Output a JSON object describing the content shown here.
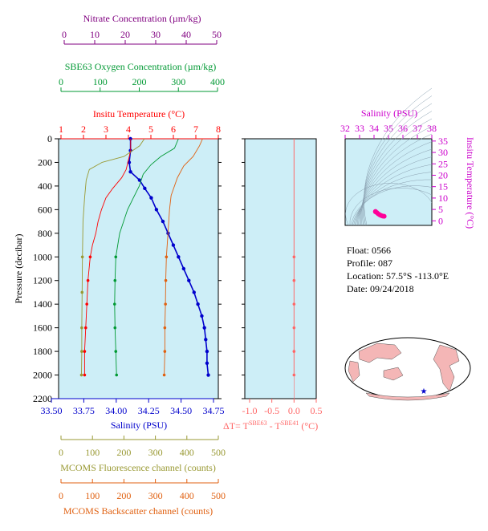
{
  "info": {
    "float": "Float:  0566",
    "profile": "Profile:  087",
    "location": "Location:  57.5°S  -113.0°E",
    "date": "Date:  09/24/2018"
  },
  "colors": {
    "temperature": "#ff0000",
    "salinity": "#0000cc",
    "oxygen": "#009933",
    "nitrate": "#800080",
    "fluorescence": "#999933",
    "backscatter": "#e06010",
    "delta_t": "#ff6666",
    "ts_salinity_axis": "#cc00cc",
    "ts_temp_axis": "#cc00cc",
    "panel_bg": "#cdeef7",
    "land": "#f4b6b6"
  },
  "axes": {
    "nitrate": {
      "label": "Nitrate Concentration (µm/kg)",
      "ticks": [
        "0",
        "10",
        "20",
        "30",
        "40",
        "50"
      ],
      "range": [
        0,
        50
      ]
    },
    "oxygen": {
      "label": "SBE63 Oxygen Concentration (µm/kg)",
      "ticks": [
        "0",
        "100",
        "200",
        "300",
        "400"
      ],
      "range": [
        0,
        400
      ]
    },
    "temperature": {
      "label": "Insitu Temperature (°C)",
      "ticks": [
        "1",
        "2",
        "3",
        "4",
        "5",
        "6",
        "7",
        "8"
      ],
      "range": [
        1,
        8
      ]
    },
    "pressure": {
      "label": "Pressure (decibar)",
      "ticks": [
        "0",
        "200",
        "400",
        "600",
        "800",
        "1000",
        "1200",
        "1400",
        "1600",
        "1800",
        "2000",
        "2200"
      ],
      "range": [
        0,
        2200
      ]
    },
    "salinity": {
      "label": "Salinity (PSU)",
      "ticks": [
        "33.50",
        "33.75",
        "34.00",
        "34.25",
        "34.50",
        "34.75"
      ],
      "range": [
        33.5,
        34.75
      ]
    },
    "delta_t": {
      "label_main": "ΔT= T",
      "label_sup1": "SBE63",
      "label_mid": " - T",
      "label_sup2": "SBE41",
      "label_end": " (°C)",
      "ticks": [
        "-1.0",
        "-0.5",
        "0.0",
        "0.5"
      ],
      "range": [
        -1.0,
        0.5
      ]
    },
    "fluorescence": {
      "label": "MCOMS Fluorescence channel (counts)",
      "ticks": [
        "0",
        "100",
        "200",
        "300",
        "400",
        "500"
      ],
      "range": [
        0,
        500
      ]
    },
    "backscatter": {
      "label": "MCOMS Backscatter channel (counts)",
      "ticks": [
        "0",
        "100",
        "200",
        "300",
        "400",
        "500"
      ],
      "range": [
        0,
        500
      ]
    },
    "ts_salinity": {
      "label": "Salinity (PSU)",
      "ticks": [
        "32",
        "33",
        "34",
        "35",
        "36",
        "37",
        "38"
      ],
      "range": [
        32,
        38
      ]
    },
    "ts_temperature": {
      "label": "Insitu Temperature (°C)",
      "ticks": [
        "0",
        "5",
        "10",
        "15",
        "20",
        "25",
        "30",
        "35"
      ],
      "range": [
        -2,
        36
      ]
    }
  },
  "chart_data": [
    {
      "type": "line",
      "title": "",
      "ylabel": "Pressure (decibar)",
      "ylim": [
        2200,
        0
      ],
      "series": [
        {
          "name": "Salinity (PSU)",
          "axis": "salinity",
          "points": [
            [
              34.11,
              0
            ],
            [
              34.11,
              100
            ],
            [
              34.1,
              200
            ],
            [
              34.11,
              280
            ],
            [
              34.18,
              350
            ],
            [
              34.22,
              420
            ],
            [
              34.27,
              500
            ],
            [
              34.31,
              600
            ],
            [
              34.36,
              700
            ],
            [
              34.4,
              800
            ],
            [
              34.44,
              900
            ],
            [
              34.48,
              1000
            ],
            [
              34.52,
              1100
            ],
            [
              34.56,
              1200
            ],
            [
              34.6,
              1300
            ],
            [
              34.63,
              1400
            ],
            [
              34.66,
              1500
            ],
            [
              34.68,
              1600
            ],
            [
              34.69,
              1700
            ],
            [
              34.7,
              1800
            ],
            [
              34.7,
              1900
            ],
            [
              34.71,
              2000
            ]
          ]
        },
        {
          "name": "Insitu Temperature (°C)",
          "axis": "temperature",
          "points": [
            [
              4.1,
              0
            ],
            [
              4.1,
              100
            ],
            [
              4.0,
              180
            ],
            [
              3.9,
              260
            ],
            [
              3.7,
              330
            ],
            [
              3.3,
              420
            ],
            [
              3.0,
              500
            ],
            [
              2.8,
              600
            ],
            [
              2.65,
              700
            ],
            [
              2.55,
              800
            ],
            [
              2.4,
              900
            ],
            [
              2.3,
              1000
            ],
            [
              2.2,
              1200
            ],
            [
              2.15,
              1400
            ],
            [
              2.1,
              1600
            ],
            [
              2.05,
              1800
            ],
            [
              2.05,
              2000
            ]
          ]
        },
        {
          "name": "SBE63 Oxygen Concentration (µm/kg)",
          "axis": "oxygen",
          "points": [
            [
              300,
              0
            ],
            [
              290,
              80
            ],
            [
              255,
              150
            ],
            [
              230,
              220
            ],
            [
              210,
              300
            ],
            [
              200,
              400
            ],
            [
              185,
              500
            ],
            [
              170,
              600
            ],
            [
              160,
              700
            ],
            [
              150,
              800
            ],
            [
              145,
              900
            ],
            [
              140,
              1000
            ],
            [
              138,
              1200
            ],
            [
              137,
              1400
            ],
            [
              138,
              1600
            ],
            [
              140,
              1800
            ],
            [
              142,
              2000
            ]
          ]
        },
        {
          "name": "MCOMS Fluorescence channel (counts)",
          "axis": "fluorescence",
          "points": [
            [
              265,
              0
            ],
            [
              250,
              60
            ],
            [
              200,
              150
            ],
            [
              130,
              200
            ],
            [
              90,
              260
            ],
            [
              80,
              350
            ],
            [
              75,
              500
            ],
            [
              70,
              700
            ],
            [
              68,
              1000
            ],
            [
              67,
              1300
            ],
            [
              66,
              1600
            ],
            [
              66,
              1800
            ],
            [
              65,
              2000
            ]
          ]
        },
        {
          "name": "MCOMS Backscatter channel (counts)",
          "axis": "backscatter",
          "points": [
            [
              450,
              0
            ],
            [
              440,
              60
            ],
            [
              420,
              150
            ],
            [
              390,
              230
            ],
            [
              370,
              330
            ],
            [
              350,
              480
            ],
            [
              345,
              600
            ],
            [
              340,
              800
            ],
            [
              335,
              1000
            ],
            [
              333,
              1200
            ],
            [
              332,
              1400
            ],
            [
              330,
              1600
            ],
            [
              330,
              1800
            ],
            [
              328,
              2000
            ]
          ]
        },
        {
          "name": "ΔT",
          "axis": "delta_t",
          "points": [
            [
              0.0,
              0
            ],
            [
              0.0,
              200
            ],
            [
              0.0,
              400
            ],
            [
              0.0,
              600
            ],
            [
              0.0,
              800
            ],
            [
              0.0,
              1000
            ],
            [
              0.0,
              1200
            ],
            [
              0.0,
              1400
            ],
            [
              0.0,
              1600
            ],
            [
              0.0,
              1800
            ],
            [
              0.0,
              2000
            ]
          ]
        }
      ]
    },
    {
      "type": "scatter",
      "title": "",
      "xlabel": "Salinity (PSU)",
      "ylabel": "Insitu Temperature (°C)",
      "xlim": [
        32,
        38
      ],
      "ylim": [
        -2,
        36
      ],
      "points": [
        [
          34.1,
          4.1
        ],
        [
          34.1,
          4.0
        ],
        [
          34.2,
          3.6
        ],
        [
          34.3,
          3.0
        ],
        [
          34.4,
          2.6
        ],
        [
          34.5,
          2.3
        ],
        [
          34.6,
          2.1
        ],
        [
          34.7,
          2.0
        ]
      ]
    }
  ]
}
